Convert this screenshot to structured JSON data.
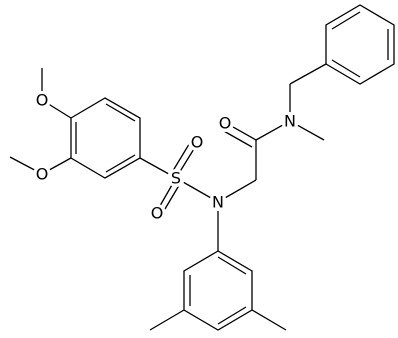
{
  "nodes": [
    {
      "label": "O"
    },
    {
      "label": "O"
    },
    {
      "label": "S"
    },
    {
      "label": "O"
    },
    {
      "label": "O"
    },
    {
      "label": "N"
    },
    {
      "label": "O"
    },
    {
      "label": "N"
    }
  ]
}
